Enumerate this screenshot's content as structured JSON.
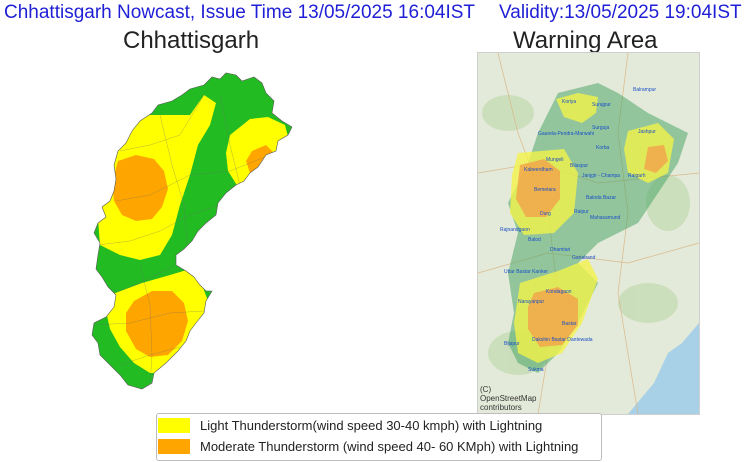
{
  "header": {
    "issue_text": "Chhattisgarh Nowcast, Issue Time 13/05/2025 16:04IST",
    "validity_text": "Validity:13/05/2025 19:04IST"
  },
  "state_map": {
    "title": "Chhattisgarh"
  },
  "warning_map": {
    "title": "Warning Area",
    "attribution": "(C) OpenStreetMap contributors",
    "districts": [
      "Balrampur",
      "Koriya",
      "Surajpur",
      "Surguja",
      "Jashpur",
      "Gaurela-Pendra-Marwahi",
      "Korba",
      "Mungeli",
      "Kabeerdham",
      "Bilaspur",
      "Janjgir - Champa",
      "Raigarh",
      "Bemetara",
      "Baloda Bazar",
      "Durg",
      "Raipur",
      "Mahasamund",
      "Rajnandgaon",
      "Balod",
      "Dhamtari",
      "Gariaband",
      "Uttar Bastar Kanker",
      "Kondagaon",
      "Narayanpur",
      "Bastar",
      "Dakshin Bastar Dantewada",
      "Bijapur",
      "Sukma"
    ]
  },
  "legend": {
    "items": [
      {
        "label": "Light Thunderstorm(wind speed 30-40 kmph) with Lightning",
        "color": "#ffff00"
      },
      {
        "label": "Moderate Thunderstorm (wind speed 40- 60 KMph) with Lightning",
        "color": "#ffa500"
      }
    ]
  },
  "colors": {
    "green": "#22bb22",
    "yellow": "#ffff00",
    "orange": "#ffa500",
    "header_text": "#1f1fd6"
  }
}
